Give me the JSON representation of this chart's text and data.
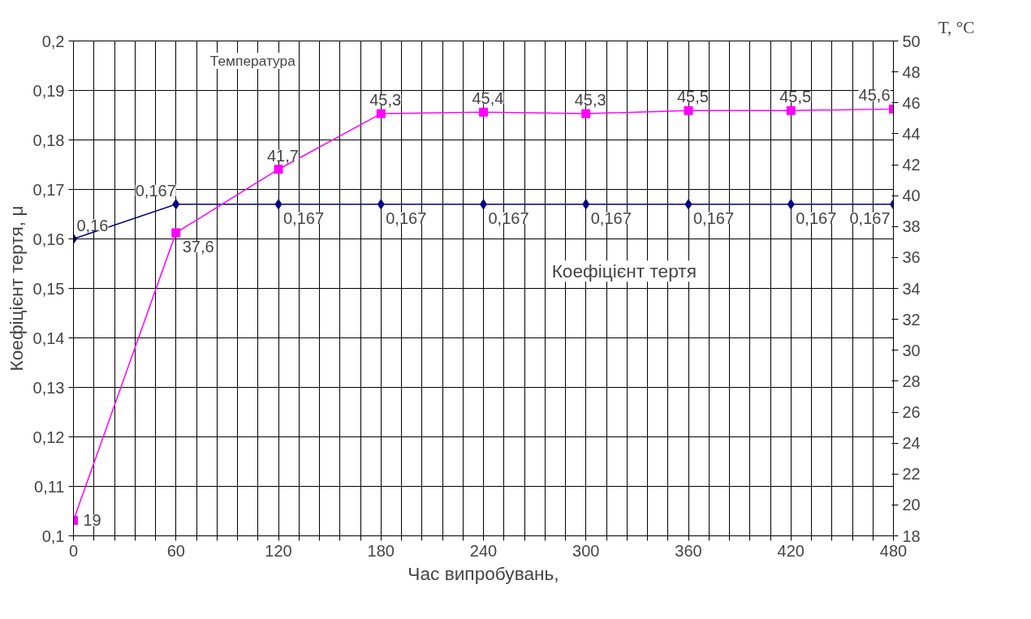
{
  "chart_data": {
    "type": "line",
    "xlabel": "Час випробувань,",
    "ylabel": "Коефіцієнт тертя, μ",
    "y2label": "T, °C",
    "annotations": [
      "Температура",
      "Коефіцієнт тертя"
    ],
    "x": [
      0,
      60,
      120,
      180,
      240,
      300,
      360,
      420,
      480
    ],
    "series": [
      {
        "color": "#000080",
        "marker": "diamond",
        "values": [
          0.16,
          0.167,
          0.167,
          0.167,
          0.167,
          0.167,
          0.167,
          0.167,
          0.167
        ],
        "value_labels": [
          "0,16",
          "0,167",
          "0,167",
          "0,167",
          "0,167",
          "0,167",
          "0,167",
          "0,167",
          "0,167"
        ]
      },
      {
        "color": "#ff00ff",
        "marker": "square",
        "axis": "y2",
        "values": [
          19,
          37.6,
          41.7,
          45.3,
          45.4,
          45.3,
          45.5,
          45.5,
          45.6
        ],
        "value_labels": [
          "19",
          "37,6",
          "41,7",
          "45,3",
          "45,4",
          "45,3",
          "45,5",
          "45,5",
          "45,6"
        ]
      }
    ],
    "xlim": [
      0,
      480
    ],
    "xticks": [
      0,
      {
        "value": 12,
        "label": null
      },
      {
        "value": 24,
        "label": null
      },
      {
        "value": 36,
        "label": null
      },
      {
        "value": 48,
        "label": null
      },
      60,
      {
        "value": 72,
        "label": null
      },
      {
        "value": 84,
        "label": null
      },
      {
        "value": 96,
        "label": null
      },
      {
        "value": 108,
        "label": null
      },
      120,
      {
        "value": 132,
        "label": null
      },
      {
        "value": 144,
        "label": null
      },
      {
        "value": 156,
        "label": null
      },
      {
        "value": 168,
        "label": null
      },
      180,
      {
        "value": 192,
        "label": null
      },
      {
        "value": 204,
        "label": null
      },
      {
        "value": 216,
        "label": null
      },
      {
        "value": 228,
        "label": null
      },
      240,
      {
        "value": 252,
        "label": null
      },
      {
        "value": 264,
        "label": null
      },
      {
        "value": 276,
        "label": null
      },
      {
        "value": 288,
        "label": null
      },
      300,
      {
        "value": 312,
        "label": null
      },
      {
        "value": 324,
        "label": null
      },
      {
        "value": 336,
        "label": null
      },
      {
        "value": 348,
        "label": null
      },
      360,
      {
        "value": 372,
        "label": null
      },
      {
        "value": 384,
        "label": null
      },
      {
        "value": 396,
        "label": null
      },
      {
        "value": 408,
        "label": null
      },
      420,
      {
        "value": 432,
        "label": null
      },
      {
        "value": 444,
        "label": null
      },
      {
        "value": 456,
        "label": null
      },
      {
        "value": 468,
        "label": null
      },
      480
    ],
    "ylim": [
      0.1,
      0.2
    ],
    "yticks": [
      {
        "value": 0.1,
        "label": "0,1"
      },
      {
        "value": 0.11,
        "label": "0,11"
      },
      {
        "value": 0.12,
        "label": "0,12"
      },
      {
        "value": 0.13,
        "label": "0,13"
      },
      {
        "value": 0.14,
        "label": "0,14"
      },
      {
        "value": 0.15,
        "label": "0,15"
      },
      {
        "value": 0.16,
        "label": "0,16"
      },
      {
        "value": 0.17,
        "label": "0,17"
      },
      {
        "value": 0.18,
        "label": "0,18"
      },
      {
        "value": 0.19,
        "label": "0,19"
      },
      {
        "value": 0.2,
        "label": "0,2"
      }
    ],
    "y2lim": [
      18,
      50
    ],
    "y2ticks": [
      18,
      20,
      22,
      24,
      26,
      28,
      30,
      32,
      34,
      36,
      38,
      40,
      42,
      44,
      46,
      48,
      50
    ],
    "grid": true,
    "line_style": "solid"
  }
}
